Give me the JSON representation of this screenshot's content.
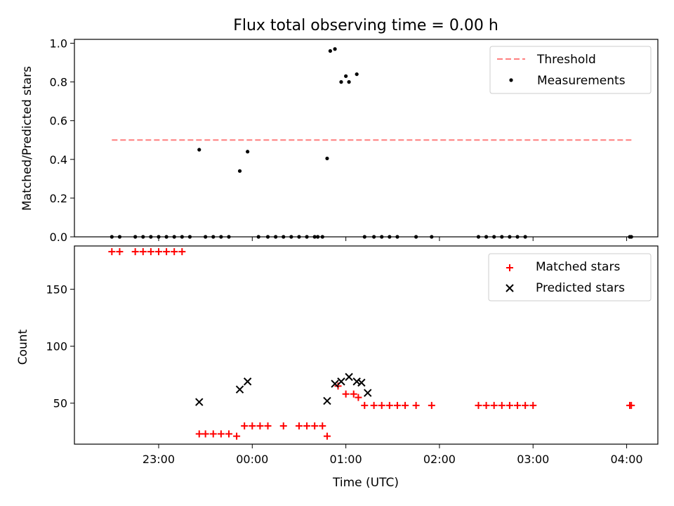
{
  "chart_data": [
    {
      "type": "scatter",
      "title": "Flux total observing time = 0.00 h",
      "xlabel": "",
      "ylabel": "Matched/Predicted stars",
      "ylim": [
        0,
        1.02
      ],
      "yticks": [
        "0.0",
        "0.2",
        "0.4",
        "0.6",
        "0.8",
        "1.0"
      ],
      "legend_position": "top-right",
      "threshold": {
        "name": "Threshold",
        "value": 0.5,
        "x_range": [
          "22:30",
          "04:04"
        ],
        "color": "#ff7f7f",
        "style": "dashed"
      },
      "series": [
        {
          "name": "Measurements",
          "color": "#000000",
          "marker": "dot",
          "points": [
            [
              "22:30",
              0
            ],
            [
              "22:35",
              0
            ],
            [
              "22:45",
              0
            ],
            [
              "22:50",
              0
            ],
            [
              "22:55",
              0
            ],
            [
              "23:00",
              0
            ],
            [
              "23:05",
              0
            ],
            [
              "23:10",
              0
            ],
            [
              "23:15",
              0
            ],
            [
              "23:20",
              0
            ],
            [
              "23:26",
              0.45
            ],
            [
              "23:30",
              0
            ],
            [
              "23:35",
              0
            ],
            [
              "23:40",
              0
            ],
            [
              "23:45",
              0
            ],
            [
              "23:52",
              0.34
            ],
            [
              "23:57",
              0.44
            ],
            [
              "00:04",
              0
            ],
            [
              "00:10",
              0
            ],
            [
              "00:15",
              0
            ],
            [
              "00:20",
              0
            ],
            [
              "00:25",
              0
            ],
            [
              "00:30",
              0
            ],
            [
              "00:35",
              0
            ],
            [
              "00:40",
              0
            ],
            [
              "00:42",
              0
            ],
            [
              "00:45",
              0
            ],
            [
              "00:48",
              0.405
            ],
            [
              "00:50",
              0.96
            ],
            [
              "00:53",
              0.97
            ],
            [
              "00:57",
              0.8
            ],
            [
              "01:00",
              0.83
            ],
            [
              "01:02",
              0.8
            ],
            [
              "01:07",
              0.84
            ],
            [
              "01:12",
              0
            ],
            [
              "01:18",
              0
            ],
            [
              "01:23",
              0
            ],
            [
              "01:28",
              0
            ],
            [
              "01:33",
              0
            ],
            [
              "01:45",
              0
            ],
            [
              "01:55",
              0
            ],
            [
              "02:25",
              0
            ],
            [
              "02:30",
              0
            ],
            [
              "02:35",
              0
            ],
            [
              "02:40",
              0
            ],
            [
              "02:45",
              0
            ],
            [
              "02:50",
              0
            ],
            [
              "02:55",
              0
            ],
            [
              "04:02",
              0
            ],
            [
              "04:03",
              0
            ]
          ]
        }
      ]
    },
    {
      "type": "scatter",
      "title": "",
      "xlabel": "Time (UTC)",
      "ylabel": "Count",
      "ylim": [
        14,
        188
      ],
      "yticks": [
        "50",
        "100",
        "150"
      ],
      "xticks": [
        "23:00",
        "00:00",
        "01:00",
        "02:00",
        "03:00",
        "04:00"
      ],
      "xlim": [
        "22:06",
        "04:20"
      ],
      "legend_position": "top-right",
      "series": [
        {
          "name": "Matched stars",
          "color": "#ff0000",
          "marker": "plus",
          "points": [
            [
              "22:30",
              183
            ],
            [
              "22:35",
              183
            ],
            [
              "22:45",
              183
            ],
            [
              "22:50",
              183
            ],
            [
              "22:55",
              183
            ],
            [
              "23:00",
              183
            ],
            [
              "23:05",
              183
            ],
            [
              "23:10",
              183
            ],
            [
              "23:15",
              183
            ],
            [
              "23:26",
              23
            ],
            [
              "23:30",
              23
            ],
            [
              "23:35",
              23
            ],
            [
              "23:40",
              23
            ],
            [
              "23:45",
              23
            ],
            [
              "23:50",
              21
            ],
            [
              "23:55",
              30
            ],
            [
              "24:00",
              30
            ],
            [
              "24:05",
              30
            ],
            [
              "24:10",
              30
            ],
            [
              "24:20",
              30
            ],
            [
              "24:30",
              30
            ],
            [
              "24:35",
              30
            ],
            [
              "24:40",
              30
            ],
            [
              "24:45",
              30
            ],
            [
              "24:48",
              21
            ],
            [
              "24:55",
              65
            ],
            [
              "25:00",
              58
            ],
            [
              "25:05",
              58
            ],
            [
              "25:08",
              55
            ],
            [
              "25:12",
              48
            ],
            [
              "25:18",
              48
            ],
            [
              "25:23",
              48
            ],
            [
              "25:28",
              48
            ],
            [
              "25:33",
              48
            ],
            [
              "25:38",
              48
            ],
            [
              "25:45",
              48
            ],
            [
              "25:55",
              48
            ],
            [
              "26:25",
              48
            ],
            [
              "26:30",
              48
            ],
            [
              "26:35",
              48
            ],
            [
              "26:40",
              48
            ],
            [
              "26:45",
              48
            ],
            [
              "26:50",
              48
            ],
            [
              "26:55",
              48
            ],
            [
              "27:00",
              48
            ],
            [
              "28:02",
              48
            ],
            [
              "28:03",
              48
            ]
          ]
        },
        {
          "name": "Predicted stars",
          "color": "#000000",
          "marker": "x",
          "points": [
            [
              "23:26",
              51
            ],
            [
              "23:52",
              62
            ],
            [
              "23:57",
              69
            ],
            [
              "24:48",
              52
            ],
            [
              "24:53",
              67
            ],
            [
              "24:57",
              69
            ],
            [
              "25:02",
              73
            ],
            [
              "25:07",
              69
            ],
            [
              "25:10",
              68
            ],
            [
              "25:14",
              59
            ]
          ]
        }
      ]
    }
  ]
}
